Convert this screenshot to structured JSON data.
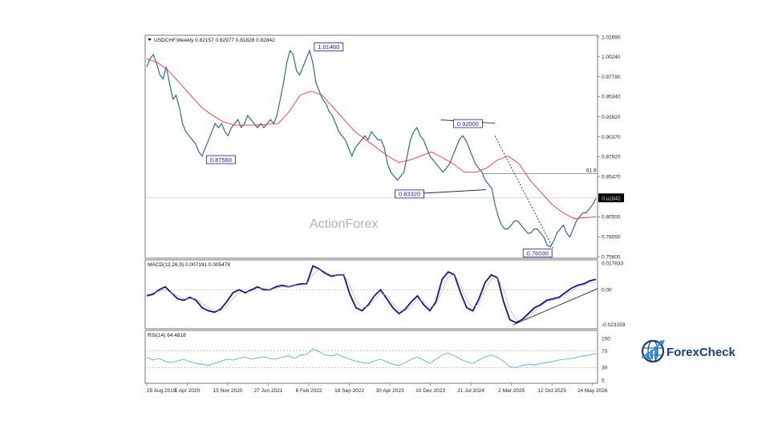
{
  "chart_data": [
    {
      "type": "line",
      "header": "USDCHF,Weekly  0.82157 0.82977 0.81828 0.82842",
      "symbol": "USDCHF",
      "ylim": [
        0.756,
        1.0269
      ],
      "yticks": [
        "1.02690",
        "1.00240",
        "0.97790",
        "0.95340",
        "0.92820",
        "0.90370",
        "0.87920",
        "0.85470",
        "0.83020",
        "0.80500",
        "0.78050",
        "0.75600"
      ],
      "ytick_values": [
        1.0269,
        1.0024,
        0.9779,
        0.9534,
        0.9282,
        0.9037,
        0.8792,
        0.8547,
        0.8302,
        0.805,
        0.7805,
        0.756
      ],
      "current_price": "0.82842",
      "current_value": 0.82842,
      "fib_label": "61.8",
      "fib_value": 0.8585,
      "watermark": "ActionForex",
      "price_labels": [
        {
          "text": "1.01460",
          "value": 1.0146,
          "t": 0.405
        },
        {
          "text": "0.87560",
          "value": 0.8756,
          "t": 0.165
        },
        {
          "text": "0.83320",
          "value": 0.8332,
          "t": 0.585
        },
        {
          "text": "0.92000",
          "value": 0.92,
          "t": 0.715
        },
        {
          "text": "0.76030",
          "value": 0.7603,
          "t": 0.87
        }
      ],
      "series": [
        {
          "name": "USDCHF",
          "color": "#1f5f8f",
          "values": [
            0.99,
            1.0,
            1.005,
            0.995,
            0.98,
            0.975,
            0.99,
            0.97,
            0.95,
            0.955,
            0.94,
            0.92,
            0.91,
            0.905,
            0.9,
            0.895,
            0.885,
            0.88,
            0.89,
            0.9,
            0.91,
            0.92,
            0.915,
            0.92,
            0.91,
            0.905,
            0.915,
            0.92,
            0.925,
            0.915,
            0.92,
            0.93,
            0.925,
            0.92,
            0.915,
            0.92,
            0.915,
            0.92,
            0.925,
            0.92,
            0.93,
            0.95,
            0.97,
            0.995,
            1.01,
            1.005,
            0.985,
            0.98,
            0.99,
            1.0,
            1.01,
            0.995,
            0.97,
            0.96,
            0.95,
            0.945,
            0.935,
            0.93,
            0.92,
            0.91,
            0.905,
            0.9,
            0.89,
            0.88,
            0.89,
            0.895,
            0.9,
            0.905,
            0.9,
            0.91,
            0.905,
            0.9,
            0.9,
            0.89,
            0.87,
            0.86,
            0.855,
            0.85,
            0.855,
            0.86,
            0.88,
            0.9,
            0.91,
            0.915,
            0.905,
            0.9,
            0.89,
            0.88,
            0.875,
            0.87,
            0.865,
            0.86,
            0.865,
            0.87,
            0.88,
            0.89,
            0.9,
            0.905,
            0.9,
            0.89,
            0.88,
            0.87,
            0.865,
            0.86,
            0.85,
            0.845,
            0.84,
            0.82,
            0.805,
            0.795,
            0.79,
            0.79,
            0.795,
            0.8,
            0.8,
            0.795,
            0.79,
            0.785,
            0.785,
            0.79,
            0.79,
            0.785,
            0.78,
            0.77,
            0.768,
            0.775,
            0.785,
            0.79,
            0.795,
            0.785,
            0.78,
            0.79,
            0.8,
            0.805,
            0.81,
            0.81,
            0.815,
            0.82,
            0.828
          ]
        },
        {
          "name": "MA",
          "color": "#e53935",
          "values": [
            1.0,
            0.995,
            0.985,
            0.97,
            0.955,
            0.94,
            0.93,
            0.922,
            0.918,
            0.918,
            0.918,
            0.919,
            0.92,
            0.935,
            0.955,
            0.96,
            0.955,
            0.94,
            0.925,
            0.91,
            0.9,
            0.89,
            0.88,
            0.872,
            0.875,
            0.88,
            0.885,
            0.878,
            0.87,
            0.86,
            0.86,
            0.865,
            0.875,
            0.88,
            0.87,
            0.85,
            0.835,
            0.82,
            0.81,
            0.803,
            0.804,
            0.805
          ]
        }
      ]
    },
    {
      "type": "line",
      "header": "MACD(12,26,9) 0.007191 0.005478",
      "ylim": [
        -0.025,
        0.019
      ],
      "yticks": [
        "0.017833",
        "0.00",
        "-0.023159"
      ],
      "ytick_values": [
        0.017833,
        0.0,
        -0.023159
      ],
      "series": [
        {
          "name": "MACD",
          "color": "#0d1a8c",
          "values": [
            -0.004,
            -0.003,
            0.0,
            0.002,
            -0.002,
            -0.006,
            -0.007,
            -0.005,
            -0.007,
            -0.012,
            -0.014,
            -0.015,
            -0.013,
            -0.008,
            -0.002,
            0.0,
            -0.002,
            0.0,
            0.002,
            0.0,
            0.0,
            0.002,
            0.003,
            0.002,
            0.003,
            0.004,
            0.004,
            0.016,
            0.014,
            0.011,
            0.009,
            0.01,
            0.01,
            -0.003,
            -0.012,
            -0.014,
            -0.01,
            -0.004,
            0.0,
            -0.006,
            -0.012,
            -0.016,
            -0.013,
            -0.008,
            -0.004,
            -0.01,
            -0.014,
            -0.008,
            0.007,
            0.012,
            0.01,
            -0.002,
            -0.012,
            -0.014,
            -0.006,
            0.005,
            0.01,
            0.008,
            -0.008,
            -0.02,
            -0.022,
            -0.02,
            -0.016,
            -0.012,
            -0.01,
            -0.007,
            -0.006,
            -0.005,
            -0.002,
            0.001,
            0.003,
            0.004,
            0.006,
            0.007
          ]
        },
        {
          "name": "Signal",
          "color": "#a0a0a0",
          "values": [
            -0.003,
            -0.002,
            -0.001,
            0.0,
            -0.002,
            -0.004,
            -0.006,
            -0.006,
            -0.006,
            -0.009,
            -0.012,
            -0.014,
            -0.014,
            -0.011,
            -0.006,
            -0.002,
            -0.001,
            -0.001,
            0.001,
            0.001,
            0.0,
            0.001,
            0.002,
            0.002,
            0.003,
            0.003,
            0.004,
            0.01,
            0.014,
            0.012,
            0.01,
            0.01,
            0.01,
            0.003,
            -0.007,
            -0.012,
            -0.011,
            -0.007,
            -0.002,
            -0.004,
            -0.009,
            -0.014,
            -0.014,
            -0.011,
            -0.006,
            -0.008,
            -0.012,
            -0.01,
            0.0,
            0.009,
            0.01,
            0.003,
            -0.007,
            -0.012,
            -0.009,
            0.0,
            0.007,
            0.008,
            0.0,
            -0.013,
            -0.02,
            -0.021,
            -0.018,
            -0.014,
            -0.011,
            -0.008,
            -0.007,
            -0.006,
            -0.004,
            -0.001,
            0.002,
            0.003,
            0.005,
            0.005
          ]
        }
      ]
    },
    {
      "type": "line",
      "header": "RSI(14) 64.4818",
      "ylim": [
        0,
        100
      ],
      "yticks": [
        "100",
        "70",
        "30",
        "0"
      ],
      "ytick_values": [
        100,
        70,
        30,
        0
      ],
      "levels": [
        70,
        30
      ],
      "series": [
        {
          "name": "RSI",
          "color": "#4aa3df",
          "values": [
            55,
            48,
            52,
            45,
            42,
            46,
            50,
            44,
            40,
            38,
            35,
            40,
            45,
            50,
            48,
            52,
            55,
            50,
            53,
            56,
            52,
            50,
            55,
            58,
            52,
            60,
            62,
            75,
            68,
            60,
            58,
            62,
            55,
            50,
            45,
            42,
            40,
            46,
            50,
            44,
            38,
            35,
            42,
            50,
            55,
            48,
            40,
            50,
            60,
            65,
            58,
            50,
            44,
            40,
            48,
            56,
            60,
            55,
            45,
            32,
            30,
            35,
            38,
            36,
            40,
            42,
            45,
            48,
            50,
            52,
            55,
            58,
            60,
            64
          ]
        }
      ]
    }
  ],
  "x_axis": {
    "labels": [
      "25 Aug 2019",
      "5 Apr 2020",
      "15 Nov 2020",
      "27 Jun 2021",
      "6 Feb 2022",
      "18 Sep 2022",
      "30 Apr 2023",
      "10 Dec 2023",
      "21 Jul 2024",
      "2 Mar 2025",
      "12 Oct 2025",
      "24 May 2026"
    ]
  },
  "logo": {
    "text": "ForexCheck",
    "text_part1": "Forex",
    "text_part2": "Check",
    "color_dark": "#1b3f78",
    "color_accent": "#2f8fd8"
  }
}
